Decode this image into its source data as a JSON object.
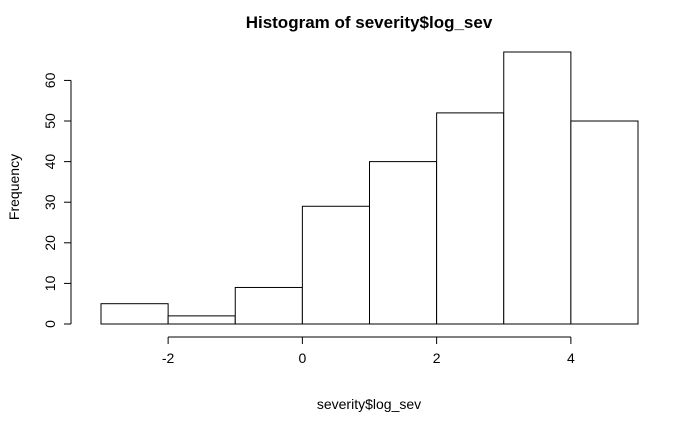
{
  "chart_data": {
    "type": "bar",
    "title": "Histogram of severity$log_sev",
    "xlabel": "severity$log_sev",
    "ylabel": "Frequency",
    "bins": [
      {
        "start": -3,
        "end": -2,
        "count": 5
      },
      {
        "start": -2,
        "end": -1,
        "count": 2
      },
      {
        "start": -1,
        "end": 0,
        "count": 9
      },
      {
        "start": 0,
        "end": 1,
        "count": 29
      },
      {
        "start": 1,
        "end": 2,
        "count": 40
      },
      {
        "start": 2,
        "end": 3,
        "count": 52
      },
      {
        "start": 3,
        "end": 4,
        "count": 67
      },
      {
        "start": 4,
        "end": 5,
        "count": 50
      }
    ],
    "xlim": [
      -3,
      5
    ],
    "ylim": [
      0,
      67
    ],
    "x_ticks": [
      -2,
      0,
      2,
      4
    ],
    "y_ticks": [
      0,
      10,
      20,
      30,
      40,
      50,
      60
    ],
    "grid": false,
    "colors": {
      "bar_fill": "#ffffff",
      "bar_stroke": "#000000"
    }
  }
}
